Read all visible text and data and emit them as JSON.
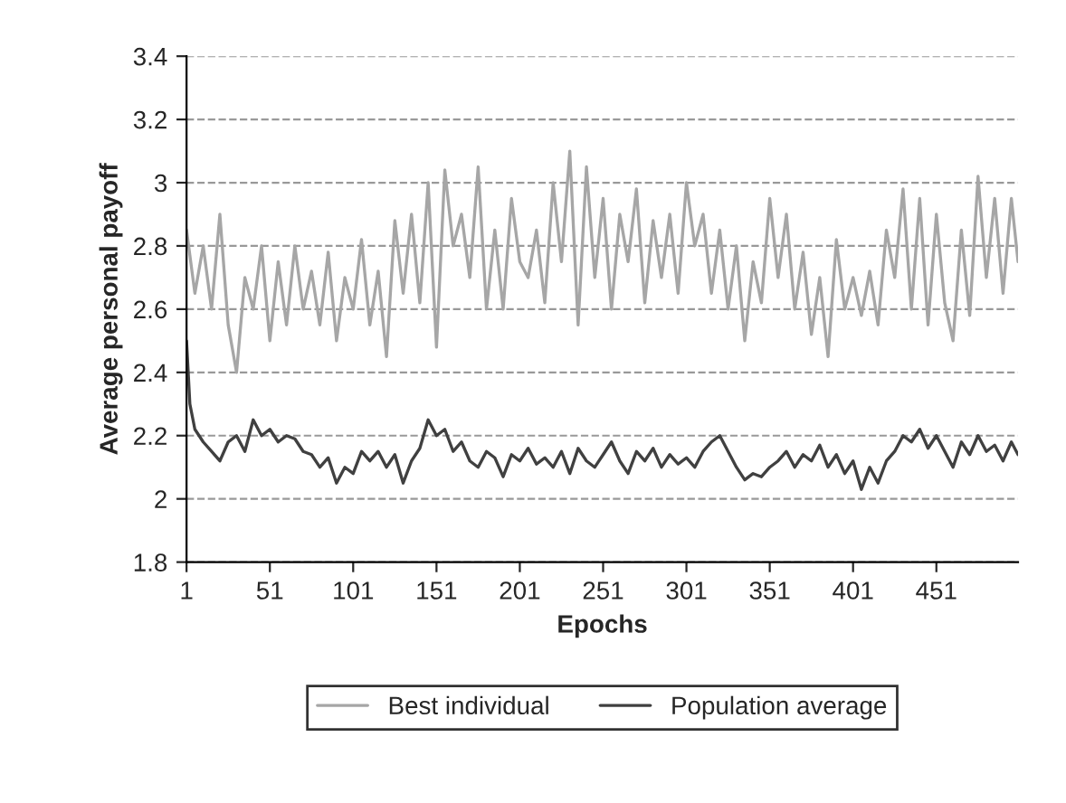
{
  "chart_data": {
    "type": "line",
    "xlabel": "Epochs",
    "ylabel": "Average personal payoff",
    "xlim": [
      1,
      500
    ],
    "xticks": [
      1,
      51,
      101,
      151,
      201,
      251,
      301,
      351,
      401,
      451
    ],
    "ylim": [
      1.8,
      3.4
    ],
    "yticks": [
      1.8,
      2,
      2.2,
      2.4,
      2.6,
      2.8,
      3,
      3.2,
      3.4
    ],
    "grid": "y",
    "legend": "bottom",
    "marker": "none",
    "line_style": "solid",
    "series": [
      {
        "name": "Best individual",
        "color": "#a6a6a6",
        "x": [
          1,
          6,
          11,
          16,
          21,
          26,
          31,
          36,
          41,
          46,
          51,
          56,
          61,
          66,
          71,
          76,
          81,
          86,
          91,
          96,
          101,
          106,
          111,
          116,
          121,
          126,
          131,
          136,
          141,
          146,
          151,
          156,
          161,
          166,
          171,
          176,
          181,
          186,
          191,
          196,
          201,
          206,
          211,
          216,
          221,
          226,
          231,
          236,
          241,
          246,
          251,
          256,
          261,
          266,
          271,
          276,
          281,
          286,
          291,
          296,
          301,
          306,
          311,
          316,
          321,
          326,
          331,
          336,
          341,
          346,
          351,
          356,
          361,
          366,
          371,
          376,
          381,
          386,
          391,
          396,
          401,
          406,
          411,
          416,
          421,
          426,
          431,
          436,
          441,
          446,
          451,
          456,
          461,
          466,
          471,
          476,
          481,
          486,
          491,
          496,
          500
        ],
        "values": [
          2.85,
          2.65,
          2.8,
          2.6,
          2.9,
          2.55,
          2.4,
          2.7,
          2.6,
          2.8,
          2.5,
          2.75,
          2.55,
          2.8,
          2.6,
          2.72,
          2.55,
          2.78,
          2.5,
          2.7,
          2.6,
          2.82,
          2.55,
          2.72,
          2.45,
          2.88,
          2.65,
          2.9,
          2.62,
          3.0,
          2.48,
          3.04,
          2.8,
          2.9,
          2.7,
          3.05,
          2.6,
          2.85,
          2.6,
          2.95,
          2.75,
          2.7,
          2.85,
          2.62,
          3.0,
          2.75,
          3.1,
          2.55,
          3.05,
          2.7,
          2.95,
          2.6,
          2.9,
          2.75,
          2.98,
          2.62,
          2.88,
          2.7,
          2.9,
          2.65,
          3.0,
          2.8,
          2.9,
          2.65,
          2.85,
          2.6,
          2.8,
          2.5,
          2.75,
          2.62,
          2.95,
          2.7,
          2.9,
          2.6,
          2.78,
          2.52,
          2.7,
          2.45,
          2.82,
          2.6,
          2.7,
          2.58,
          2.72,
          2.55,
          2.85,
          2.7,
          2.98,
          2.6,
          2.95,
          2.55,
          2.9,
          2.62,
          2.5,
          2.85,
          2.58,
          3.02,
          2.7,
          2.95,
          2.65,
          2.95,
          2.75
        ]
      },
      {
        "name": "Population average",
        "color": "#404040",
        "x": [
          1,
          3,
          6,
          11,
          16,
          21,
          26,
          31,
          36,
          41,
          46,
          51,
          56,
          61,
          66,
          71,
          76,
          81,
          86,
          91,
          96,
          101,
          106,
          111,
          116,
          121,
          126,
          131,
          136,
          141,
          146,
          151,
          156,
          161,
          166,
          171,
          176,
          181,
          186,
          191,
          196,
          201,
          206,
          211,
          216,
          221,
          226,
          231,
          236,
          241,
          246,
          251,
          256,
          261,
          266,
          271,
          276,
          281,
          286,
          291,
          296,
          301,
          306,
          311,
          316,
          321,
          326,
          331,
          336,
          341,
          346,
          351,
          356,
          361,
          366,
          371,
          376,
          381,
          386,
          391,
          396,
          401,
          406,
          411,
          416,
          421,
          426,
          431,
          436,
          441,
          446,
          451,
          456,
          461,
          466,
          471,
          476,
          481,
          486,
          491,
          496,
          500
        ],
        "values": [
          2.5,
          2.3,
          2.22,
          2.18,
          2.15,
          2.12,
          2.18,
          2.2,
          2.15,
          2.25,
          2.2,
          2.22,
          2.18,
          2.2,
          2.19,
          2.15,
          2.14,
          2.1,
          2.13,
          2.05,
          2.1,
          2.08,
          2.15,
          2.12,
          2.15,
          2.1,
          2.14,
          2.05,
          2.12,
          2.16,
          2.25,
          2.2,
          2.22,
          2.15,
          2.18,
          2.12,
          2.1,
          2.15,
          2.13,
          2.07,
          2.14,
          2.12,
          2.16,
          2.11,
          2.13,
          2.1,
          2.15,
          2.08,
          2.16,
          2.12,
          2.1,
          2.14,
          2.18,
          2.12,
          2.08,
          2.15,
          2.12,
          2.16,
          2.1,
          2.14,
          2.11,
          2.13,
          2.1,
          2.15,
          2.18,
          2.2,
          2.15,
          2.1,
          2.06,
          2.08,
          2.07,
          2.1,
          2.12,
          2.15,
          2.1,
          2.14,
          2.12,
          2.17,
          2.1,
          2.14,
          2.08,
          2.12,
          2.03,
          2.1,
          2.05,
          2.12,
          2.15,
          2.2,
          2.18,
          2.22,
          2.16,
          2.2,
          2.15,
          2.1,
          2.18,
          2.14,
          2.2,
          2.15,
          2.17,
          2.12,
          2.18,
          2.14
        ]
      }
    ]
  }
}
